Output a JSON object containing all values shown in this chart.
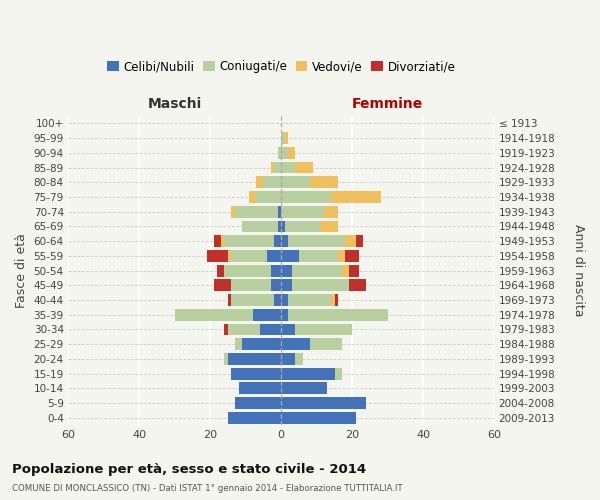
{
  "age_groups": [
    "0-4",
    "5-9",
    "10-14",
    "15-19",
    "20-24",
    "25-29",
    "30-34",
    "35-39",
    "40-44",
    "45-49",
    "50-54",
    "55-59",
    "60-64",
    "65-69",
    "70-74",
    "75-79",
    "80-84",
    "85-89",
    "90-94",
    "95-99",
    "100+"
  ],
  "birth_years": [
    "2009-2013",
    "2004-2008",
    "1999-2003",
    "1994-1998",
    "1989-1993",
    "1984-1988",
    "1979-1983",
    "1974-1978",
    "1969-1973",
    "1964-1968",
    "1959-1963",
    "1954-1958",
    "1949-1953",
    "1944-1948",
    "1939-1943",
    "1934-1938",
    "1929-1933",
    "1924-1928",
    "1919-1923",
    "1914-1918",
    "≤ 1913"
  ],
  "colors": {
    "celibi": "#4472b8",
    "coniugati": "#b8cfa0",
    "vedovi": "#f0c060",
    "divorziati": "#c0302a"
  },
  "male_celibi": [
    15,
    13,
    12,
    14,
    15,
    11,
    6,
    8,
    2,
    3,
    3,
    4,
    2,
    1,
    1,
    0,
    0,
    0,
    0,
    0,
    0
  ],
  "male_coniugati": [
    0,
    0,
    0,
    0,
    1,
    2,
    9,
    22,
    12,
    11,
    13,
    10,
    14,
    10,
    12,
    7,
    5,
    2,
    1,
    0,
    0
  ],
  "male_vedovi": [
    0,
    0,
    0,
    0,
    0,
    0,
    0,
    0,
    0,
    0,
    0,
    1,
    1,
    0,
    1,
    2,
    2,
    1,
    0,
    0,
    0
  ],
  "male_divorziati": [
    0,
    0,
    0,
    0,
    0,
    0,
    1,
    0,
    1,
    5,
    2,
    6,
    2,
    0,
    0,
    0,
    0,
    0,
    0,
    0,
    0
  ],
  "female_celibi": [
    21,
    24,
    13,
    15,
    4,
    8,
    4,
    2,
    2,
    3,
    3,
    5,
    2,
    1,
    0,
    0,
    0,
    0,
    0,
    0,
    0
  ],
  "female_coniugati": [
    0,
    0,
    0,
    2,
    2,
    9,
    16,
    28,
    12,
    16,
    14,
    11,
    16,
    10,
    12,
    14,
    8,
    4,
    2,
    1,
    0
  ],
  "female_vedovi": [
    0,
    0,
    0,
    0,
    0,
    0,
    0,
    0,
    1,
    0,
    2,
    2,
    3,
    5,
    4,
    14,
    8,
    5,
    2,
    1,
    0
  ],
  "female_divorziati": [
    0,
    0,
    0,
    0,
    0,
    0,
    0,
    0,
    1,
    5,
    3,
    4,
    2,
    0,
    0,
    0,
    0,
    0,
    0,
    0,
    0
  ],
  "xlim": 60,
  "xtick_step": 20,
  "title": "Popolazione per età, sesso e stato civile - 2014",
  "subtitle": "COMUNE DI MONCLASSICO (TN) - Dati ISTAT 1° gennaio 2014 - Elaborazione TUTTITALIA.IT",
  "xlabel_left": "Maschi",
  "xlabel_right": "Femmine",
  "ylabel_left": "Fasce di età",
  "ylabel_right": "Anni di nascita",
  "bg_color": "#f5f5f0",
  "bar_height": 0.8,
  "legend_labels": [
    "Celibi/Nubili",
    "Coniugati/e",
    "Vedovi/e",
    "Divorziati/e"
  ]
}
